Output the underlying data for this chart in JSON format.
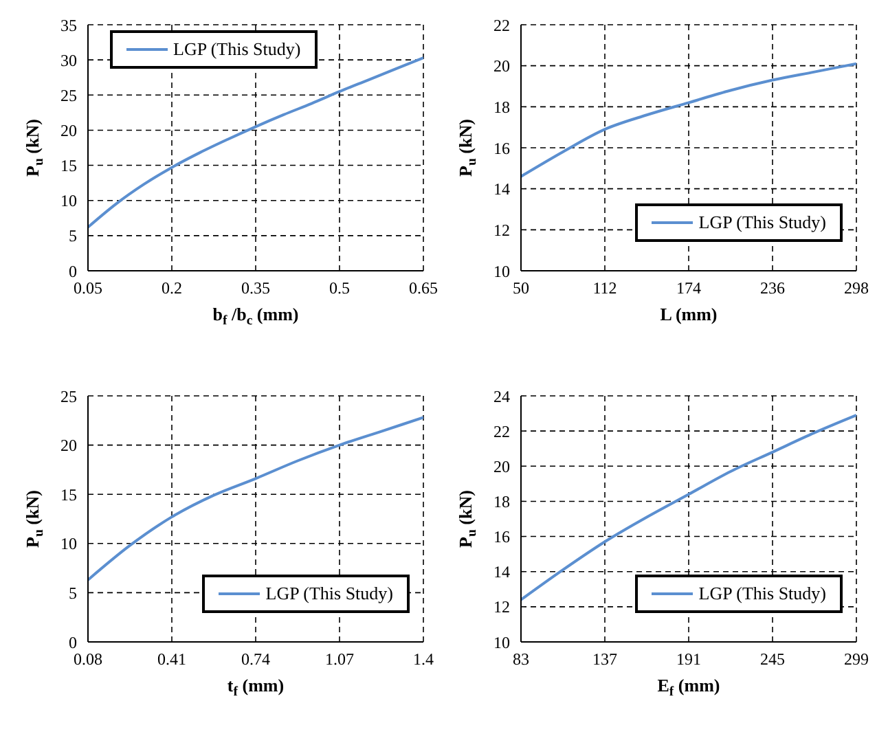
{
  "chart_data": [
    {
      "type": "line",
      "xlabel": "b$_{f}$ /b$_{c}$ (mm)",
      "ylabel": "P$_{u}$ (kN)",
      "x": [
        0.05,
        0.1,
        0.15,
        0.2,
        0.25,
        0.3,
        0.35,
        0.4,
        0.45,
        0.5,
        0.55,
        0.6,
        0.65
      ],
      "xlim": [
        0.05,
        0.65
      ],
      "xticks": [
        0.05,
        0.2,
        0.35,
        0.5,
        0.65
      ],
      "ylim": [
        0,
        35
      ],
      "yticks": [
        0,
        5,
        10,
        15,
        20,
        25,
        30,
        35
      ],
      "grid": true,
      "legend": "top left",
      "marker": "none",
      "line_style": "solid",
      "series": [
        {
          "name": "LGP (This Study)",
          "color": "#5b8fd0",
          "values": [
            6.2,
            9.5,
            12.3,
            14.7,
            16.8,
            18.7,
            20.5,
            22.2,
            23.8,
            25.5,
            27.1,
            28.7,
            30.3
          ]
        }
      ]
    },
    {
      "type": "line",
      "xlabel": "L (mm)",
      "ylabel": "P$_{u}$ (kN)",
      "x": [
        50,
        81,
        112,
        143,
        174,
        205,
        236,
        267,
        298
      ],
      "xlim": [
        50,
        298
      ],
      "xticks": [
        50,
        112,
        174,
        236,
        298
      ],
      "ylim": [
        10,
        22
      ],
      "yticks": [
        10,
        12,
        14,
        16,
        18,
        20,
        22
      ],
      "grid": true,
      "legend": "right",
      "marker": "none",
      "line_style": "solid",
      "series": [
        {
          "name": "LGP (This Study)",
          "color": "#5b8fd0",
          "values": [
            14.6,
            15.8,
            16.9,
            17.6,
            18.2,
            18.8,
            19.3,
            19.7,
            20.1
          ]
        }
      ]
    },
    {
      "type": "line",
      "xlabel": "t$_{f}$ (mm)",
      "ylabel": "P$_{u}$ (kN)",
      "x": [
        0.08,
        0.245,
        0.41,
        0.575,
        0.74,
        0.905,
        1.07,
        1.235,
        1.4
      ],
      "xlim": [
        0.08,
        1.4
      ],
      "xticks": [
        0.08,
        0.41,
        0.74,
        1.07,
        1.4
      ],
      "ylim": [
        0,
        25
      ],
      "yticks": [
        0,
        5,
        10,
        15,
        20,
        25
      ],
      "grid": true,
      "legend": "right",
      "marker": "none",
      "line_style": "solid",
      "series": [
        {
          "name": "LGP (This Study)",
          "color": "#5b8fd0",
          "values": [
            6.3,
            9.8,
            12.7,
            14.9,
            16.6,
            18.4,
            20.0,
            21.4,
            22.8
          ]
        }
      ]
    },
    {
      "type": "line",
      "xlabel": "E$_{f}$ (mm)",
      "ylabel": "P$_{u}$ (kN)",
      "x": [
        83,
        110,
        137,
        164,
        191,
        218,
        245,
        272,
        299
      ],
      "xlim": [
        83,
        299
      ],
      "xticks": [
        83,
        137,
        191,
        245,
        299
      ],
      "ylim": [
        10,
        24
      ],
      "yticks": [
        10,
        12,
        14,
        16,
        18,
        20,
        22,
        24
      ],
      "grid": true,
      "legend": "right",
      "marker": "none",
      "line_style": "solid",
      "series": [
        {
          "name": "LGP (This Study)",
          "color": "#5b8fd0",
          "values": [
            12.4,
            14.1,
            15.7,
            17.1,
            18.4,
            19.7,
            20.8,
            21.9,
            22.9
          ]
        }
      ]
    }
  ]
}
